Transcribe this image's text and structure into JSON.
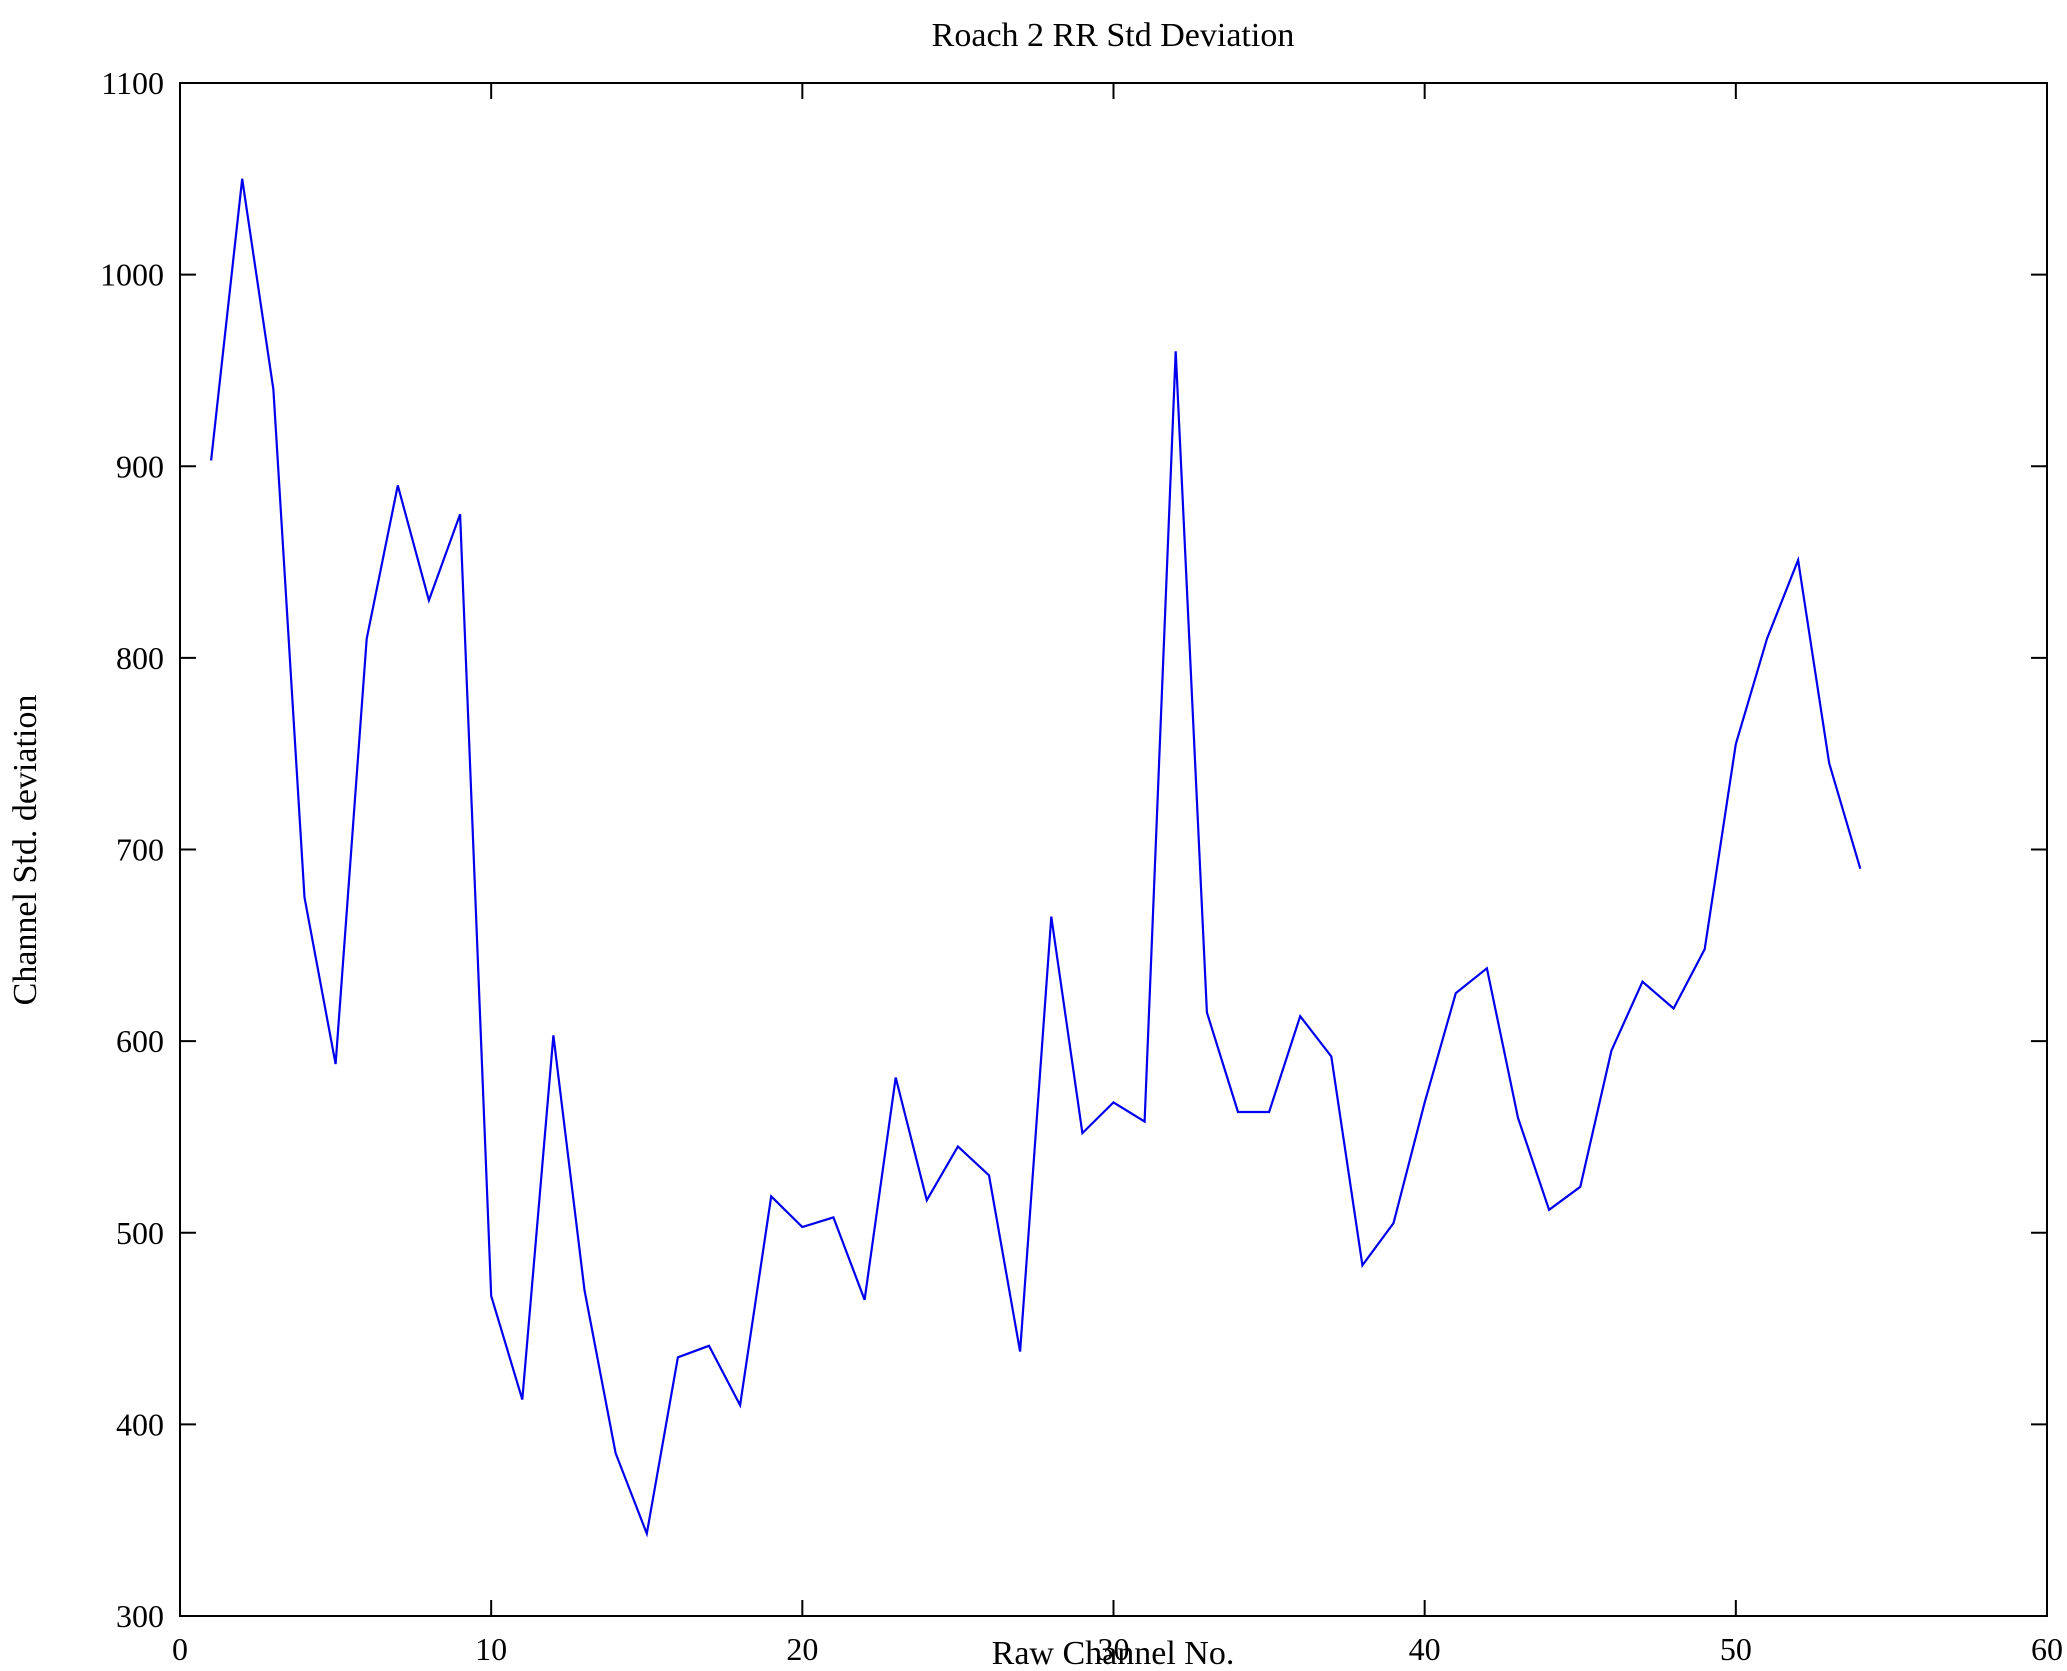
{
  "figure": {
    "background": "#ffffff"
  },
  "chart_data": {
    "type": "line",
    "title": "Roach 2 RR Std Deviation",
    "xlabel": "Raw Channel No.",
    "ylabel": "Channel Std. deviation",
    "xlim": [
      0,
      60
    ],
    "ylim": [
      300,
      1100
    ],
    "xticks": [
      0,
      10,
      20,
      30,
      40,
      50,
      60
    ],
    "yticks": [
      300,
      400,
      500,
      600,
      700,
      800,
      900,
      1000,
      1100
    ],
    "grid": false,
    "legend": "none",
    "line_color": "#0000EE",
    "x": [
      1,
      2,
      3,
      4,
      5,
      6,
      7,
      8,
      9,
      10,
      11,
      12,
      13,
      14,
      15,
      16,
      17,
      18,
      19,
      20,
      21,
      22,
      23,
      24,
      25,
      26,
      27,
      28,
      29,
      30,
      31,
      32,
      33,
      34,
      35,
      36,
      37,
      38,
      39,
      40,
      41,
      42,
      43,
      44,
      45,
      46,
      47,
      48,
      49,
      50,
      51,
      52,
      53,
      54
    ],
    "values": [
      903,
      1050,
      940,
      675,
      588,
      810,
      890,
      830,
      875,
      467,
      413,
      603,
      470,
      385,
      343,
      435,
      441,
      410,
      519,
      503,
      508,
      465,
      581,
      517,
      545,
      530,
      438,
      665,
      552,
      568,
      558,
      960,
      615,
      563,
      563,
      613,
      592,
      483,
      505,
      568,
      625,
      638,
      560,
      512,
      524,
      595,
      631,
      617,
      648,
      755,
      810,
      851,
      745,
      690
    ]
  }
}
